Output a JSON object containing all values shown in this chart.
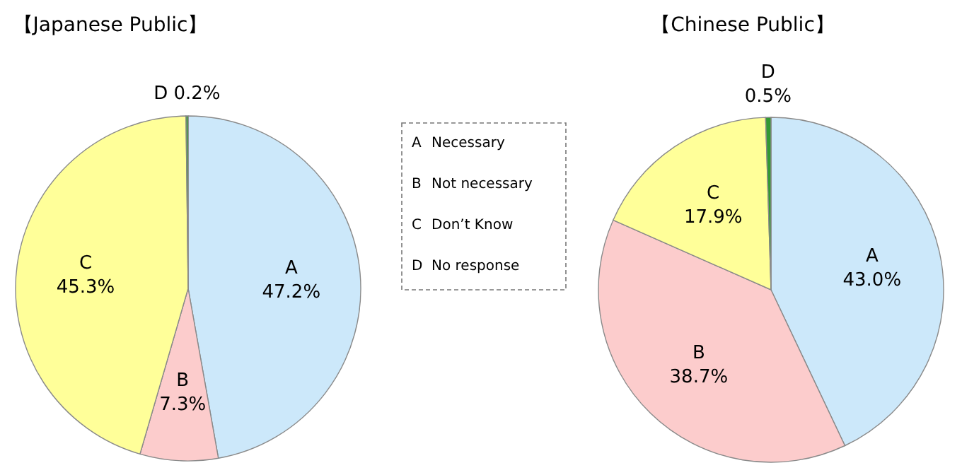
{
  "chart_data": [
    {
      "type": "pie",
      "title": "【Japanese Public】",
      "categories": [
        "A",
        "B",
        "C",
        "D"
      ],
      "values": [
        47.2,
        7.3,
        45.3,
        0.2
      ],
      "colors": [
        "#cce8fa",
        "#fccccc",
        "#ffff99",
        "#339933"
      ],
      "value_labels": [
        "47.2%",
        "7.3%",
        "45.3%",
        "0.2%"
      ]
    },
    {
      "type": "other",
      "annotations": [
        "A Necessary",
        "B Not necessary",
        "C Don’t Know",
        "D No response"
      ]
    },
    {
      "type": "pie",
      "title": "【Chinese Public】",
      "categories": [
        "A",
        "B",
        "C",
        "D"
      ],
      "values": [
        43.0,
        38.7,
        17.9,
        0.5
      ],
      "colors": [
        "#cce8fa",
        "#fccccc",
        "#ffff99",
        "#339933"
      ],
      "value_labels": [
        "43.0%",
        "38.7%",
        "17.9%",
        "0.5%"
      ]
    }
  ]
}
